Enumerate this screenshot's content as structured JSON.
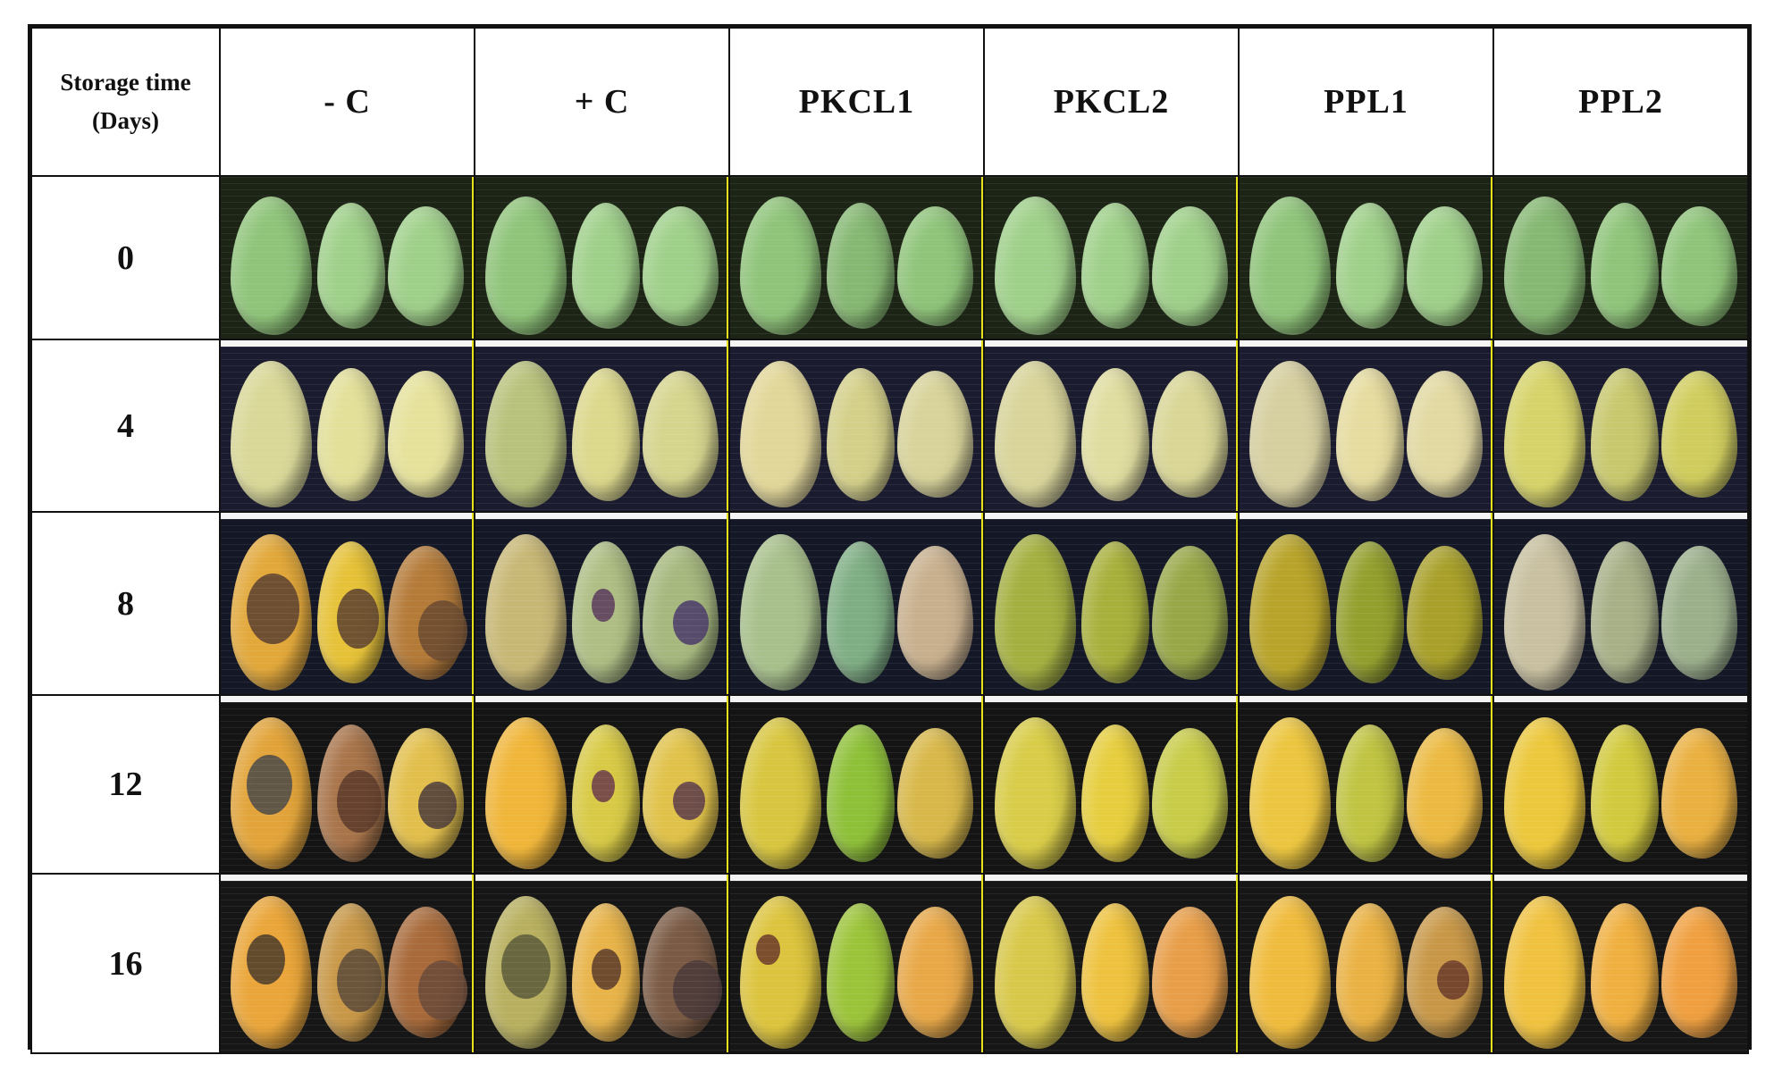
{
  "header": {
    "first_col_line1": "Storage time",
    "first_col_line2": "(Days)",
    "columns": [
      "- C",
      "+ C",
      "PKCL1",
      "PKCL2",
      "PPL1",
      "PPL2"
    ]
  },
  "rows": [
    {
      "day": "0"
    },
    {
      "day": "4"
    },
    {
      "day": "8"
    },
    {
      "day": "12"
    },
    {
      "day": "16"
    }
  ],
  "colors": {
    "border": "#111111",
    "separator": "#e8e21a",
    "photo_bg_day0": "#1c2415",
    "photo_bg_day4": "#1a1b2e",
    "photo_bg_day8": "#141726",
    "photo_bg_day12": "#141414",
    "photo_bg_day16": "#161616"
  }
}
